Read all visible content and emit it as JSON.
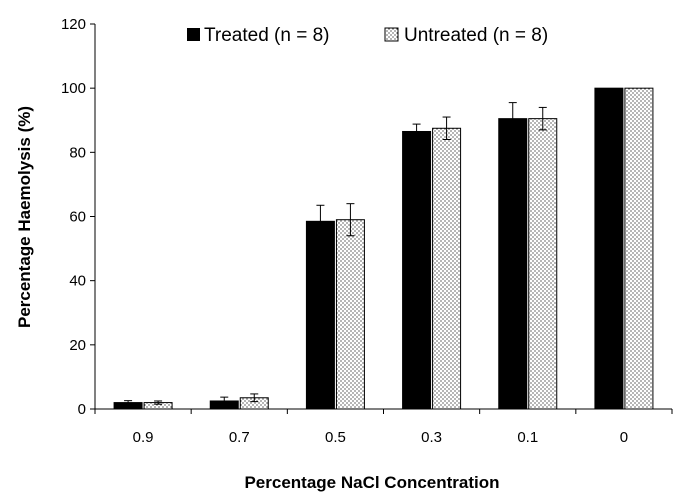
{
  "chart_data": {
    "type": "bar",
    "title": "",
    "xlabel": "Percentage NaCl Concentration",
    "ylabel": "Percentage Haemolysis (%)",
    "categories": [
      "0.9",
      "0.7",
      "0.5",
      "0.3",
      "0.1",
      "0"
    ],
    "ylim": [
      0,
      120
    ],
    "yticks": [
      "0",
      "20",
      "40",
      "60",
      "80",
      "100",
      "120"
    ],
    "grid": false,
    "legend_position": "top",
    "series": [
      {
        "name": "Treated (n = 8)",
        "values": [
          2,
          2.5,
          58.5,
          86.5,
          90.5,
          100
        ],
        "errors": [
          0.6,
          1.2,
          5,
          2.3,
          5,
          0
        ],
        "fill": "#000000",
        "pattern": "solid"
      },
      {
        "name": "Untreated (n = 8)",
        "values": [
          2,
          3.5,
          59,
          87.5,
          90.5,
          100
        ],
        "errors": [
          0.5,
          1.2,
          5,
          3.5,
          3.5,
          0
        ],
        "fill": "#ffffff",
        "pattern": "dotted"
      }
    ]
  }
}
